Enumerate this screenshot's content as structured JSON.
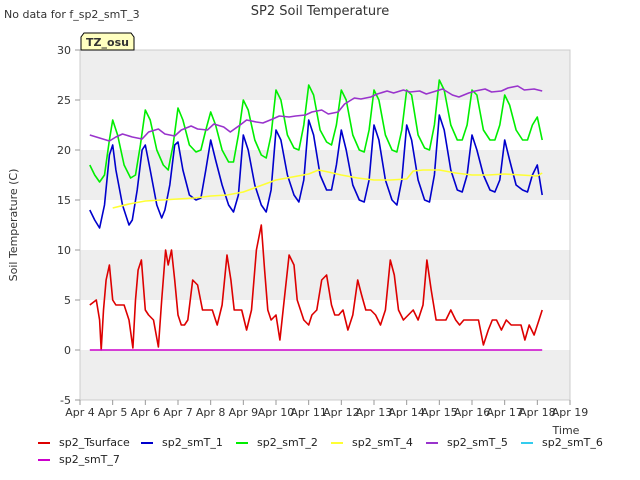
{
  "header": {
    "title": "SP2 Soil Temperature",
    "note": "No data for f_sp2_smT_3",
    "badge": "TZ_osu"
  },
  "colors": {
    "sp2_Tsurface": "#dd0000",
    "sp2_smT_1": "#0000cc",
    "sp2_smT_2": "#00ee00",
    "sp2_smT_4": "#ffff33",
    "sp2_smT_5": "#9933cc",
    "sp2_smT_6": "#33ccee",
    "sp2_smT_7": "#cc00cc",
    "band": "#eeeeee",
    "badge_bg": "#ffffc0",
    "badge_text": "#aa0000"
  },
  "chart_data": {
    "type": "line",
    "title": "SP2 Soil Temperature",
    "xlabel": "Time",
    "ylabel": "Soil Temperature (C)",
    "ylim": [
      -5,
      30
    ],
    "yticks": [
      -5,
      0,
      5,
      10,
      15,
      20,
      25,
      30
    ],
    "xlim": [
      4,
      19
    ],
    "xticks": [
      {
        "value": 4,
        "label": "Apr 4"
      },
      {
        "value": 5,
        "label": "Apr 5"
      },
      {
        "value": 6,
        "label": "Apr 6"
      },
      {
        "value": 7,
        "label": "Apr 7"
      },
      {
        "value": 8,
        "label": "Apr 8"
      },
      {
        "value": 9,
        "label": "Apr 9"
      },
      {
        "value": 10,
        "label": "Apr 10"
      },
      {
        "value": 11,
        "label": "Apr 11"
      },
      {
        "value": 12,
        "label": "Apr 12"
      },
      {
        "value": 13,
        "label": "Apr 13"
      },
      {
        "value": 14,
        "label": "Apr 14"
      },
      {
        "value": 15,
        "label": "Apr 15"
      },
      {
        "value": 16,
        "label": "Apr 16"
      },
      {
        "value": 17,
        "label": "Apr 17"
      },
      {
        "value": 18,
        "label": "Apr 18"
      },
      {
        "value": 19,
        "label": "Apr 19"
      }
    ],
    "grid": "horizontal bands",
    "legend": "bottom",
    "series": [
      {
        "name": "sp2_Tsurface",
        "color": "#dd0000",
        "x": [
          4.3,
          4.5,
          4.6,
          4.65,
          4.72,
          4.8,
          4.9,
          5.0,
          5.1,
          5.2,
          5.35,
          5.5,
          5.62,
          5.7,
          5.78,
          5.88,
          6.0,
          6.1,
          6.25,
          6.4,
          6.5,
          6.62,
          6.7,
          6.8,
          6.9,
          7.0,
          7.1,
          7.2,
          7.3,
          7.45,
          7.6,
          7.75,
          7.9,
          8.05,
          8.2,
          8.35,
          8.5,
          8.62,
          8.72,
          8.82,
          8.95,
          9.1,
          9.25,
          9.4,
          9.55,
          9.65,
          9.75,
          9.85,
          10.0,
          10.12,
          10.25,
          10.4,
          10.55,
          10.65,
          10.75,
          10.85,
          11.0,
          11.1,
          11.25,
          11.4,
          11.55,
          11.7,
          11.8,
          11.92,
          12.05,
          12.2,
          12.35,
          12.5,
          12.62,
          12.75,
          12.9,
          13.05,
          13.2,
          13.35,
          13.5,
          13.62,
          13.75,
          13.9,
          14.05,
          14.2,
          14.35,
          14.5,
          14.62,
          14.75,
          14.9,
          15.05,
          15.2,
          15.35,
          15.5,
          15.62,
          15.75,
          15.9,
          16.05,
          16.2,
          16.35,
          16.5,
          16.62,
          16.75,
          16.9,
          17.05,
          17.2,
          17.35,
          17.5,
          17.62,
          17.75,
          17.9,
          18.05,
          18.15
        ],
        "y": [
          4.5,
          5.0,
          3.0,
          0.0,
          4.0,
          7.0,
          8.5,
          5.0,
          4.5,
          4.5,
          4.5,
          3.0,
          0.2,
          5.0,
          8.0,
          9.0,
          4.0,
          3.5,
          3.0,
          0.3,
          5.0,
          10.0,
          8.5,
          10.0,
          7.0,
          3.5,
          2.5,
          2.5,
          3.0,
          7.0,
          6.5,
          4.0,
          4.0,
          4.0,
          2.5,
          4.5,
          9.5,
          7.0,
          4.0,
          4.0,
          4.0,
          2.0,
          4.0,
          10.0,
          12.5,
          8.0,
          4.0,
          3.0,
          3.5,
          1.0,
          5.0,
          9.5,
          8.5,
          5.0,
          4.0,
          3.0,
          2.5,
          3.5,
          4.0,
          7.0,
          7.5,
          4.5,
          3.5,
          3.5,
          4.0,
          2.0,
          3.5,
          7.0,
          5.5,
          4.0,
          4.0,
          3.5,
          2.5,
          4.0,
          9.0,
          7.5,
          4.0,
          3.0,
          3.5,
          4.0,
          3.0,
          4.5,
          9.0,
          6.0,
          3.0,
          3.0,
          3.0,
          4.0,
          3.0,
          2.5,
          3.0,
          3.0,
          3.0,
          3.0,
          0.5,
          2.0,
          3.0,
          3.0,
          2.0,
          3.0,
          2.5,
          2.5,
          2.5,
          1.0,
          2.5,
          1.5,
          3.0,
          4.0
        ]
      },
      {
        "name": "sp2_smT_1",
        "color": "#0000cc",
        "x": [
          4.3,
          4.45,
          4.6,
          4.75,
          4.9,
          5.0,
          5.1,
          5.3,
          5.5,
          5.6,
          5.75,
          5.9,
          6.0,
          6.15,
          6.35,
          6.5,
          6.6,
          6.75,
          6.9,
          7.0,
          7.15,
          7.35,
          7.55,
          7.7,
          7.85,
          8.0,
          8.15,
          8.35,
          8.55,
          8.7,
          8.85,
          9.0,
          9.15,
          9.35,
          9.55,
          9.7,
          9.85,
          10.0,
          10.15,
          10.35,
          10.55,
          10.7,
          10.85,
          11.0,
          11.15,
          11.35,
          11.55,
          11.7,
          11.85,
          12.0,
          12.15,
          12.35,
          12.55,
          12.7,
          12.85,
          13.0,
          13.15,
          13.35,
          13.55,
          13.7,
          13.85,
          14.0,
          14.15,
          14.35,
          14.55,
          14.7,
          14.85,
          15.0,
          15.15,
          15.35,
          15.55,
          15.7,
          15.85,
          16.0,
          16.15,
          16.35,
          16.55,
          16.7,
          16.85,
          17.0,
          17.15,
          17.35,
          17.55,
          17.7,
          17.85,
          18.0,
          18.15
        ],
        "y": [
          14.0,
          13.0,
          12.2,
          14.5,
          19.5,
          20.5,
          18.0,
          14.5,
          12.5,
          13.0,
          16.0,
          20.0,
          20.5,
          18.0,
          14.5,
          13.2,
          14.0,
          16.5,
          20.5,
          20.8,
          18.0,
          15.5,
          15.0,
          15.2,
          18.0,
          21.0,
          19.0,
          16.5,
          14.5,
          13.8,
          15.5,
          21.5,
          20.0,
          16.5,
          14.5,
          13.8,
          16.0,
          22.0,
          21.0,
          17.5,
          15.5,
          14.8,
          17.0,
          23.0,
          21.5,
          17.5,
          16.0,
          16.0,
          18.5,
          22.0,
          20.0,
          16.5,
          15.0,
          14.8,
          17.0,
          22.5,
          21.0,
          17.0,
          15.0,
          14.5,
          17.0,
          22.5,
          21.0,
          17.0,
          15.0,
          14.8,
          17.5,
          23.5,
          22.0,
          18.0,
          16.0,
          15.8,
          17.5,
          21.5,
          20.0,
          17.5,
          16.0,
          15.8,
          17.0,
          21.0,
          19.0,
          16.5,
          16.0,
          15.8,
          17.5,
          18.5,
          15.5
        ]
      },
      {
        "name": "sp2_smT_2",
        "color": "#00ee00",
        "x": [
          4.3,
          4.45,
          4.6,
          4.75,
          4.9,
          5.0,
          5.15,
          5.35,
          5.55,
          5.7,
          5.85,
          6.0,
          6.15,
          6.35,
          6.55,
          6.7,
          6.85,
          7.0,
          7.15,
          7.35,
          7.55,
          7.7,
          7.85,
          8.0,
          8.15,
          8.35,
          8.55,
          8.7,
          8.85,
          9.0,
          9.15,
          9.35,
          9.55,
          9.7,
          9.85,
          10.0,
          10.15,
          10.35,
          10.55,
          10.7,
          10.85,
          11.0,
          11.15,
          11.35,
          11.55,
          11.7,
          11.85,
          12.0,
          12.15,
          12.35,
          12.55,
          12.7,
          12.85,
          13.0,
          13.15,
          13.35,
          13.55,
          13.7,
          13.85,
          14.0,
          14.15,
          14.35,
          14.55,
          14.7,
          14.85,
          15.0,
          15.15,
          15.35,
          15.55,
          15.7,
          15.85,
          16.0,
          16.15,
          16.35,
          16.55,
          16.7,
          16.85,
          17.0,
          17.15,
          17.35,
          17.55,
          17.7,
          17.85,
          18.0,
          18.15
        ],
        "y": [
          18.5,
          17.5,
          16.8,
          17.5,
          21.0,
          23.0,
          21.5,
          18.5,
          17.2,
          17.5,
          20.5,
          24.0,
          23.0,
          20.0,
          18.5,
          18.0,
          20.5,
          24.2,
          23.0,
          20.5,
          19.8,
          20.0,
          22.0,
          23.8,
          22.5,
          20.0,
          18.8,
          18.8,
          21.5,
          25.0,
          24.0,
          21.0,
          19.5,
          19.2,
          21.5,
          26.0,
          25.0,
          21.5,
          20.2,
          20.0,
          22.5,
          26.5,
          25.5,
          22.0,
          20.8,
          20.5,
          22.5,
          26.0,
          25.0,
          21.5,
          20.0,
          19.8,
          22.0,
          26.0,
          25.0,
          21.5,
          20.0,
          19.8,
          22.0,
          26.0,
          25.5,
          21.5,
          20.2,
          20.0,
          22.5,
          27.0,
          26.0,
          22.5,
          21.0,
          21.0,
          22.5,
          26.0,
          25.5,
          22.0,
          21.0,
          21.0,
          22.5,
          25.5,
          24.5,
          22.0,
          21.0,
          21.0,
          22.5,
          23.3,
          21.0
        ]
      },
      {
        "name": "sp2_smT_4",
        "color": "#ffff33",
        "x": [
          5.0,
          5.5,
          6.0,
          6.5,
          7.0,
          7.5,
          8.0,
          8.5,
          9.0,
          9.5,
          10.0,
          10.5,
          11.0,
          11.3,
          11.6,
          12.0,
          12.5,
          13.0,
          13.5,
          14.0,
          14.2,
          14.5,
          15.0,
          15.5,
          16.0,
          16.5,
          17.0,
          17.5,
          18.0,
          18.15
        ],
        "y": [
          14.2,
          14.6,
          14.9,
          15.0,
          15.1,
          15.2,
          15.4,
          15.5,
          15.8,
          16.4,
          17.0,
          17.3,
          17.6,
          18.0,
          17.8,
          17.5,
          17.2,
          17.0,
          17.0,
          17.1,
          17.9,
          18.0,
          18.0,
          17.7,
          17.5,
          17.5,
          17.6,
          17.5,
          17.4,
          17.7
        ]
      },
      {
        "name": "sp2_smT_5",
        "color": "#9933cc",
        "x": [
          4.3,
          4.6,
          4.9,
          5.1,
          5.3,
          5.6,
          5.9,
          6.1,
          6.4,
          6.6,
          6.9,
          7.1,
          7.4,
          7.6,
          7.9,
          8.1,
          8.4,
          8.6,
          8.9,
          9.1,
          9.4,
          9.6,
          9.9,
          10.1,
          10.4,
          10.6,
          10.9,
          11.1,
          11.4,
          11.6,
          11.9,
          12.1,
          12.4,
          12.6,
          12.9,
          13.1,
          13.4,
          13.6,
          13.9,
          14.1,
          14.4,
          14.6,
          14.9,
          15.1,
          15.4,
          15.6,
          15.9,
          16.1,
          16.4,
          16.6,
          16.9,
          17.1,
          17.4,
          17.6,
          17.9,
          18.15
        ],
        "y": [
          21.5,
          21.2,
          20.9,
          21.3,
          21.6,
          21.3,
          21.1,
          21.8,
          22.1,
          21.6,
          21.4,
          22.0,
          22.4,
          22.1,
          22.0,
          22.6,
          22.3,
          21.8,
          22.5,
          23.0,
          22.8,
          22.7,
          23.1,
          23.4,
          23.3,
          23.4,
          23.5,
          23.8,
          24.0,
          23.6,
          23.8,
          24.6,
          25.2,
          25.1,
          25.3,
          25.6,
          25.9,
          25.7,
          26.0,
          25.8,
          25.9,
          25.6,
          25.9,
          26.1,
          25.5,
          25.3,
          25.7,
          25.9,
          26.1,
          25.8,
          25.9,
          26.2,
          26.4,
          26.0,
          26.1,
          25.9
        ]
      },
      {
        "name": "sp2_smT_6",
        "color": "#33ccee",
        "x": [],
        "y": []
      },
      {
        "name": "sp2_smT_7",
        "color": "#cc00cc",
        "x": [
          4.3,
          18.15
        ],
        "y": [
          0.0,
          0.0
        ]
      }
    ]
  }
}
